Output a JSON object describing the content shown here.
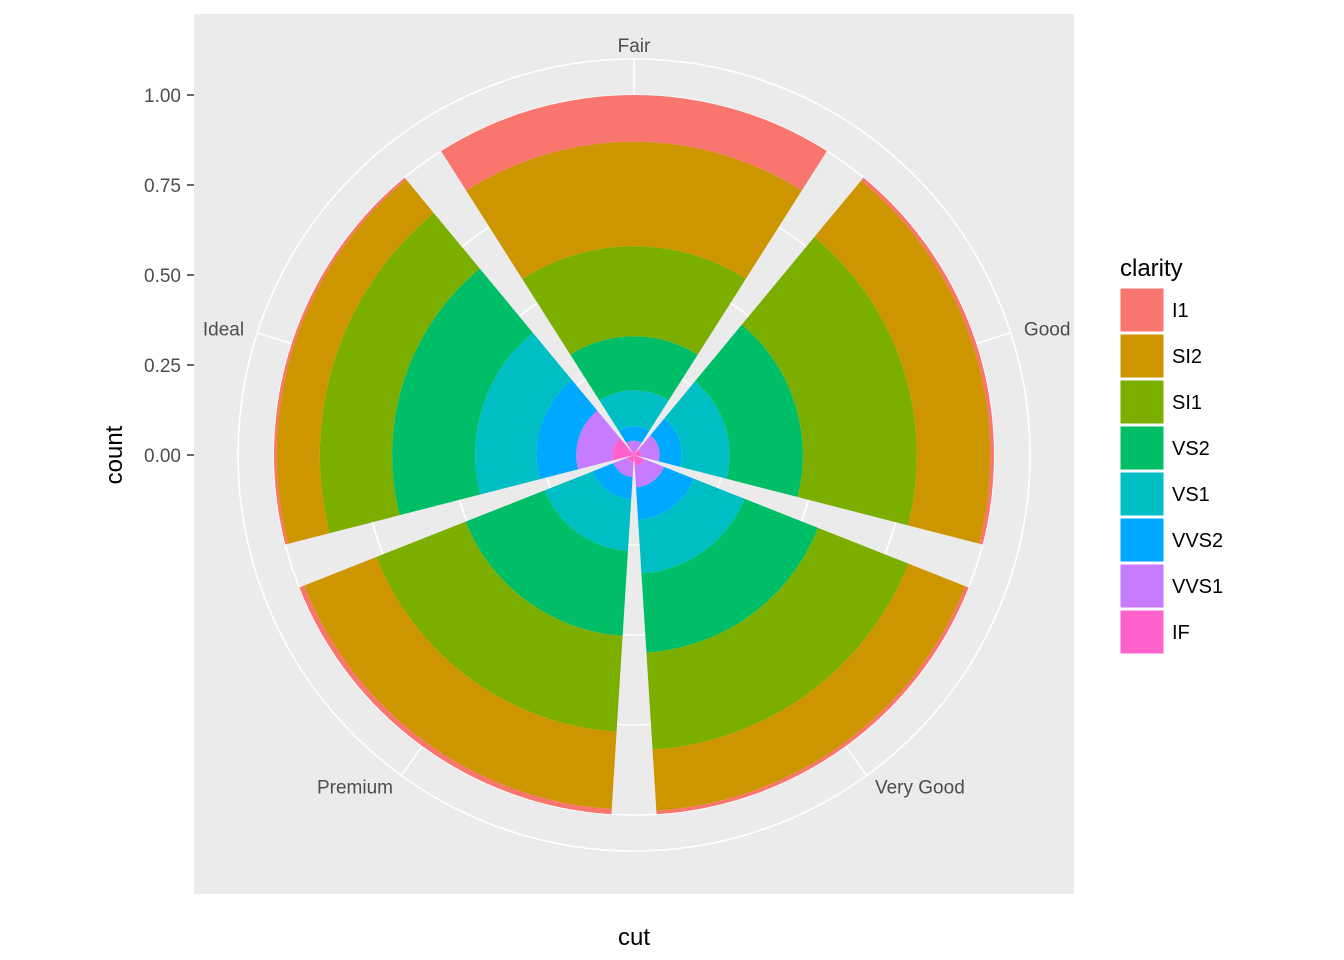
{
  "chart_data": {
    "type": "bar",
    "subtype": "polar-stacked-fill",
    "xlabel": "cut",
    "ylabel": "count",
    "categories": [
      "Fair",
      "Good",
      "Very Good",
      "Premium",
      "Ideal"
    ],
    "y_ticks": [
      "0.00",
      "0.25",
      "0.50",
      "0.75",
      "1.00"
    ],
    "y_tick_values": [
      0,
      0.25,
      0.5,
      0.75,
      1.0
    ],
    "ylim": [
      0,
      1.1
    ],
    "grid": true,
    "legend": {
      "title": "clarity",
      "position": "right",
      "items": [
        "I1",
        "SI2",
        "SI1",
        "VS2",
        "VS1",
        "VVS2",
        "VVS1",
        "IF"
      ]
    },
    "series": [
      {
        "name": "I1",
        "color": "#F8766D",
        "values": [
          0.13,
          0.01,
          0.01,
          0.014,
          0.007
        ]
      },
      {
        "name": "SI2",
        "color": "#CD9600",
        "values": [
          0.29,
          0.2,
          0.17,
          0.21,
          0.12
        ]
      },
      {
        "name": "SI1",
        "color": "#7CAE00",
        "values": [
          0.25,
          0.31,
          0.27,
          0.26,
          0.2
        ]
      },
      {
        "name": "VS2",
        "color": "#00BE67",
        "values": [
          0.15,
          0.2,
          0.22,
          0.23,
          0.23
        ]
      },
      {
        "name": "VS1",
        "color": "#00BFC4",
        "values": [
          0.1,
          0.13,
          0.15,
          0.14,
          0.17
        ]
      },
      {
        "name": "VVS2",
        "color": "#00A9FF",
        "values": [
          0.04,
          0.06,
          0.09,
          0.06,
          0.11
        ]
      },
      {
        "name": "VVS1",
        "color": "#C77CFF",
        "values": [
          0.03,
          0.05,
          0.06,
          0.04,
          0.1
        ]
      },
      {
        "name": "IF",
        "color": "#FF61CC",
        "values": [
          0.01,
          0.02,
          0.03,
          0.02,
          0.06
        ]
      }
    ]
  }
}
